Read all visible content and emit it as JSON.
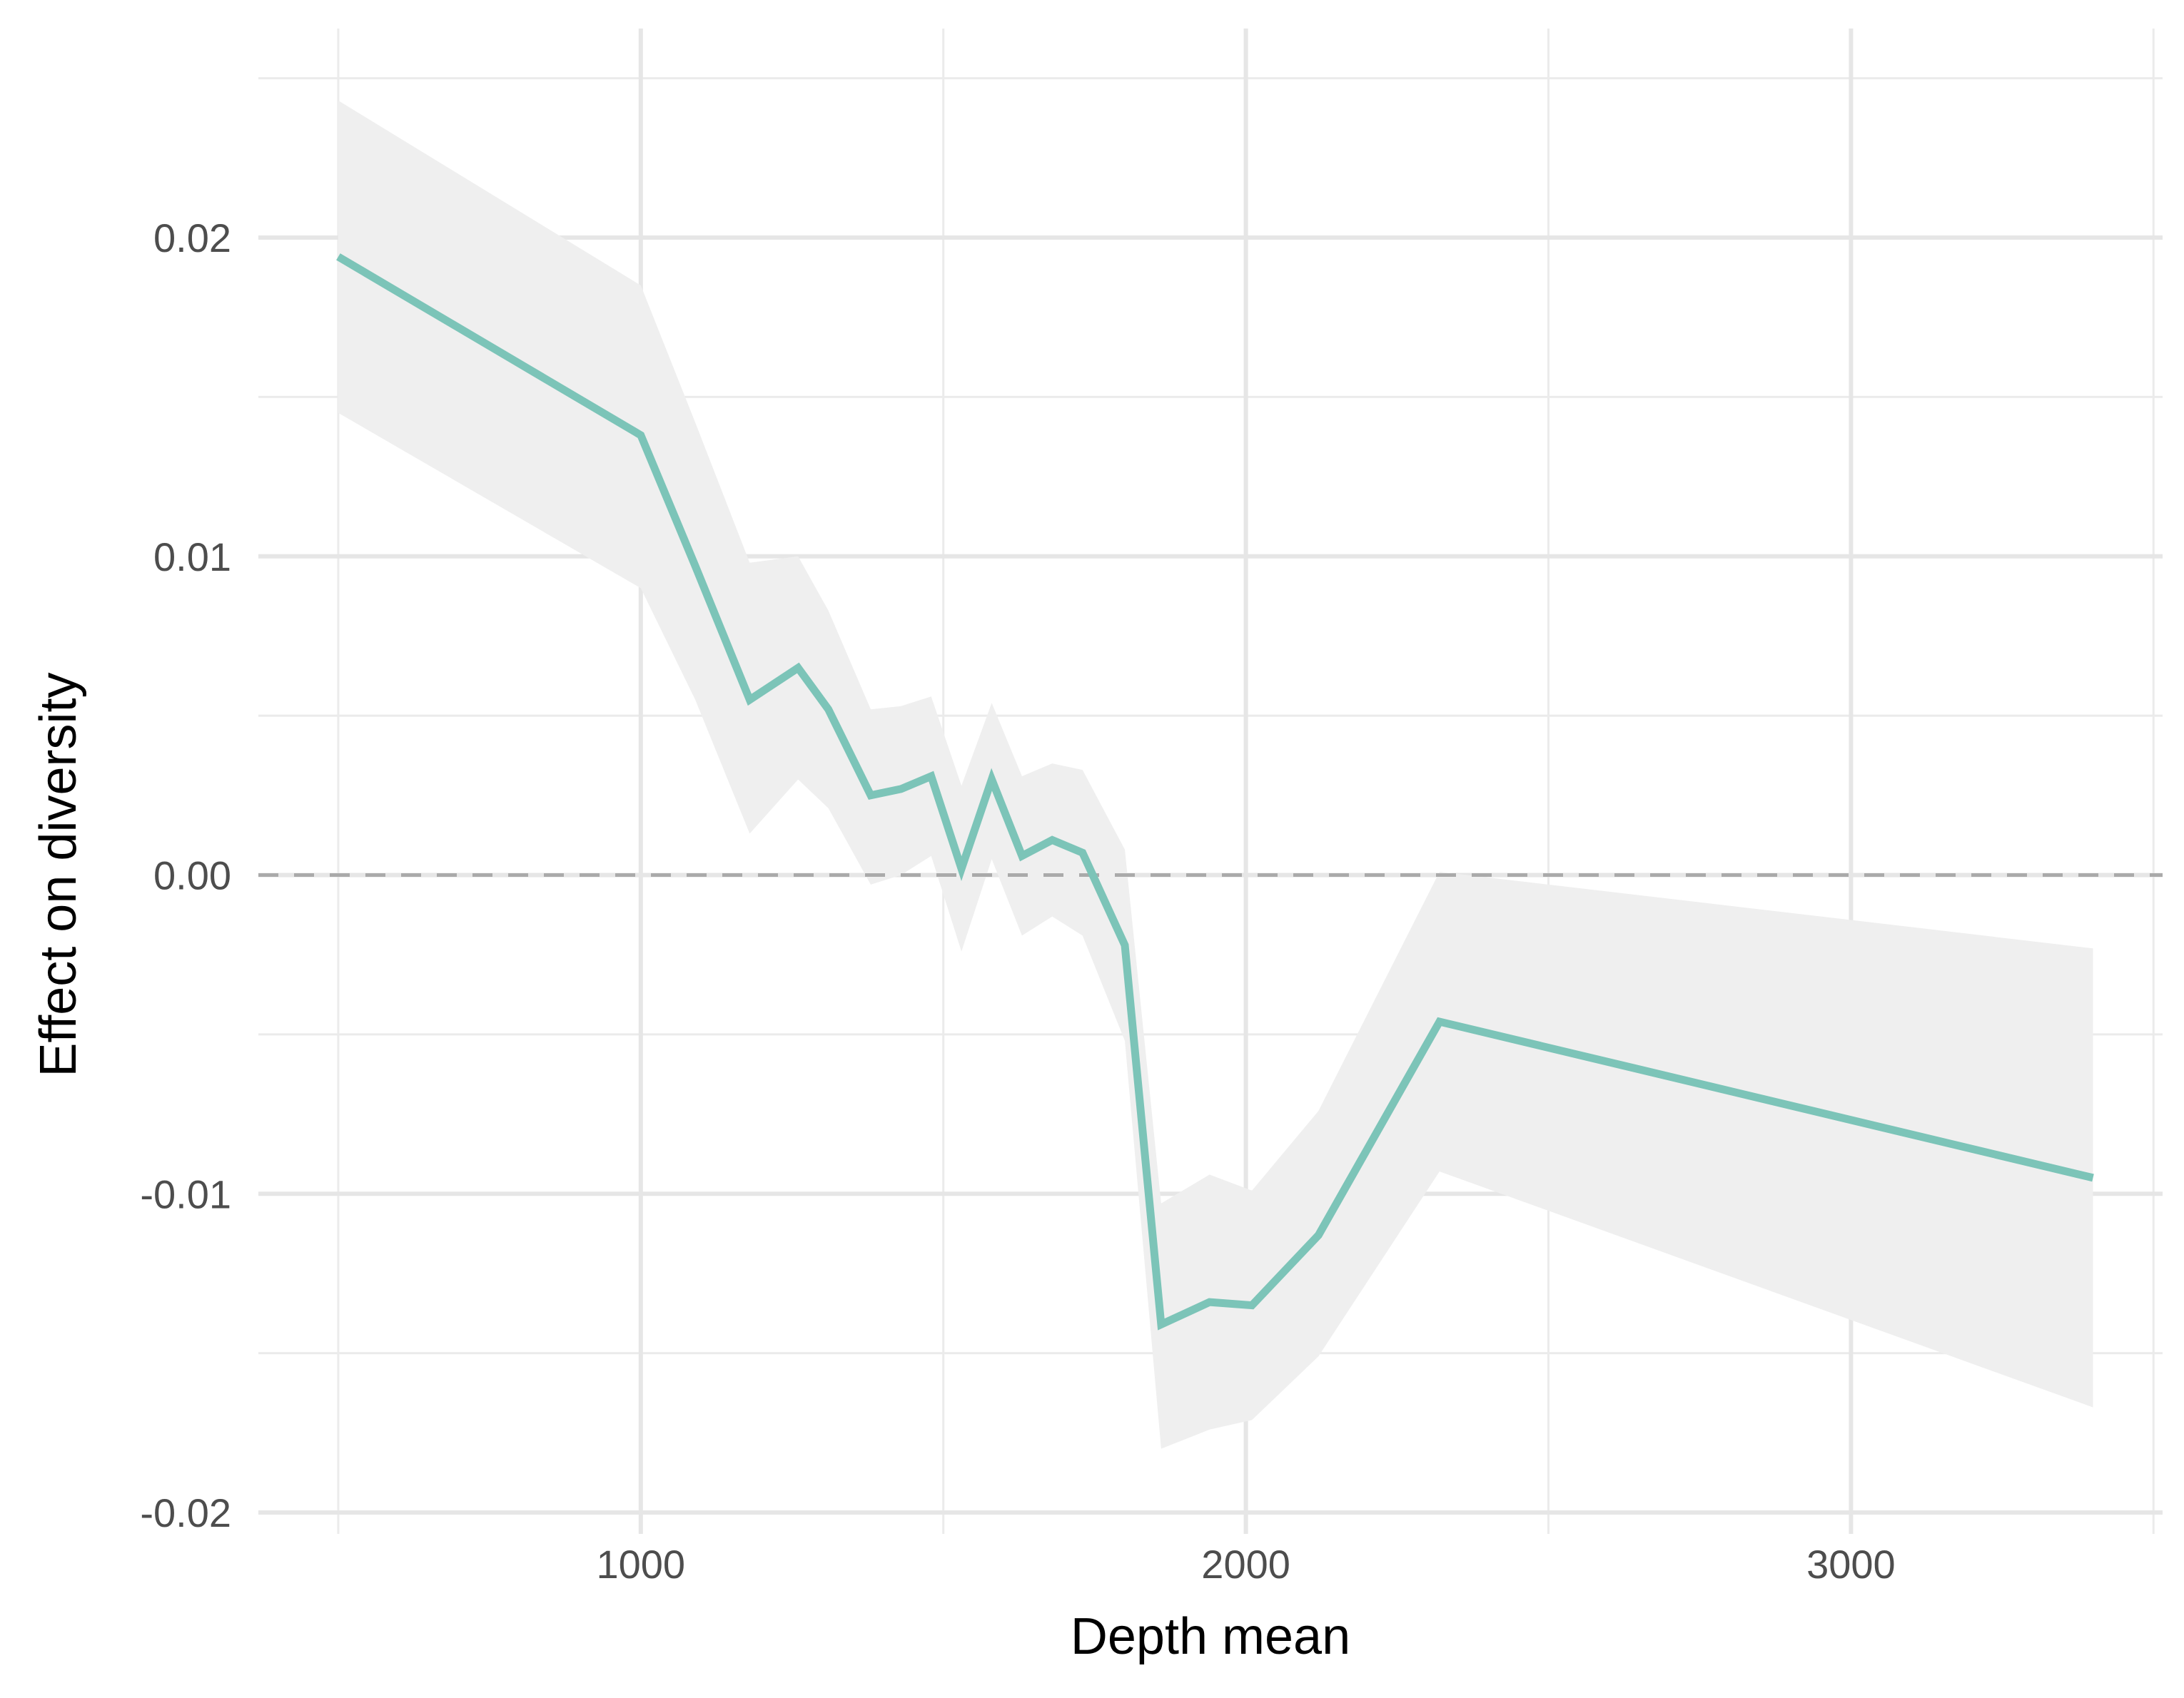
{
  "chart_data": {
    "type": "line",
    "title": "",
    "xlabel": "Depth mean",
    "ylabel": "Effect on diversity",
    "xlim": [
      368,
      3515
    ],
    "ylim": [
      -0.02,
      0.025
    ],
    "x_ticks": [
      1000,
      2000,
      3000
    ],
    "x_tick_labels": [
      "1000",
      "2000",
      "3000"
    ],
    "x_minor_ticks": [
      500,
      1500,
      2500,
      3500
    ],
    "y_ticks": [
      -0.02,
      -0.01,
      0.0,
      0.01,
      0.02
    ],
    "y_tick_labels": [
      "-0.02",
      "-0.01",
      "0.00",
      "0.01",
      "0.02"
    ],
    "y_minor_ticks": [
      -0.015,
      -0.005,
      0.005,
      0.015,
      0.025
    ],
    "grid": true,
    "legend": "none",
    "reference_line": {
      "y": 0.0,
      "style": "dashed",
      "color": "#aaaaaa"
    },
    "series": [
      {
        "color": "#7cc4b8",
        "band_color": "#efefef",
        "points": [
          {
            "x": 500,
            "y": 0.0194,
            "lower": 0.0145,
            "upper": 0.0243
          },
          {
            "x": 1000,
            "y": 0.0138,
            "lower": 0.009,
            "upper": 0.0185
          },
          {
            "x": 1090,
            "y": 0.0097,
            "lower": 0.0055,
            "upper": 0.0142
          },
          {
            "x": 1180,
            "y": 0.0055,
            "lower": 0.0013,
            "upper": 0.0098
          },
          {
            "x": 1260,
            "y": 0.0065,
            "lower": 0.003,
            "upper": 0.01
          },
          {
            "x": 1310,
            "y": 0.0052,
            "lower": 0.0021,
            "upper": 0.0083
          },
          {
            "x": 1380,
            "y": 0.0025,
            "lower": -0.0003,
            "upper": 0.0052
          },
          {
            "x": 1430,
            "y": 0.0027,
            "lower": 0.0,
            "upper": 0.0053
          },
          {
            "x": 1480,
            "y": 0.0031,
            "lower": 0.0006,
            "upper": 0.0056
          },
          {
            "x": 1530,
            "y": 0.0002,
            "lower": -0.0024,
            "upper": 0.0028
          },
          {
            "x": 1580,
            "y": 0.003,
            "lower": 0.0005,
            "upper": 0.0054
          },
          {
            "x": 1630,
            "y": 0.0006,
            "lower": -0.0019,
            "upper": 0.0031
          },
          {
            "x": 1680,
            "y": 0.0011,
            "lower": -0.0013,
            "upper": 0.0035
          },
          {
            "x": 1730,
            "y": 0.0007,
            "lower": -0.0019,
            "upper": 0.0033
          },
          {
            "x": 1800,
            "y": -0.0022,
            "lower": -0.0052,
            "upper": 0.0008
          },
          {
            "x": 1860,
            "y": -0.0141,
            "lower": -0.018,
            "upper": -0.0103
          },
          {
            "x": 1940,
            "y": -0.0134,
            "lower": -0.0174,
            "upper": -0.0094
          },
          {
            "x": 2010,
            "y": -0.0135,
            "lower": -0.0171,
            "upper": -0.0099
          },
          {
            "x": 2120,
            "y": -0.0113,
            "lower": -0.0151,
            "upper": -0.0074
          },
          {
            "x": 2320,
            "y": -0.0046,
            "lower": -0.0093,
            "upper": 0.0001
          },
          {
            "x": 3400,
            "y": -0.0095,
            "lower": -0.0167,
            "upper": -0.0023
          }
        ]
      }
    ]
  }
}
